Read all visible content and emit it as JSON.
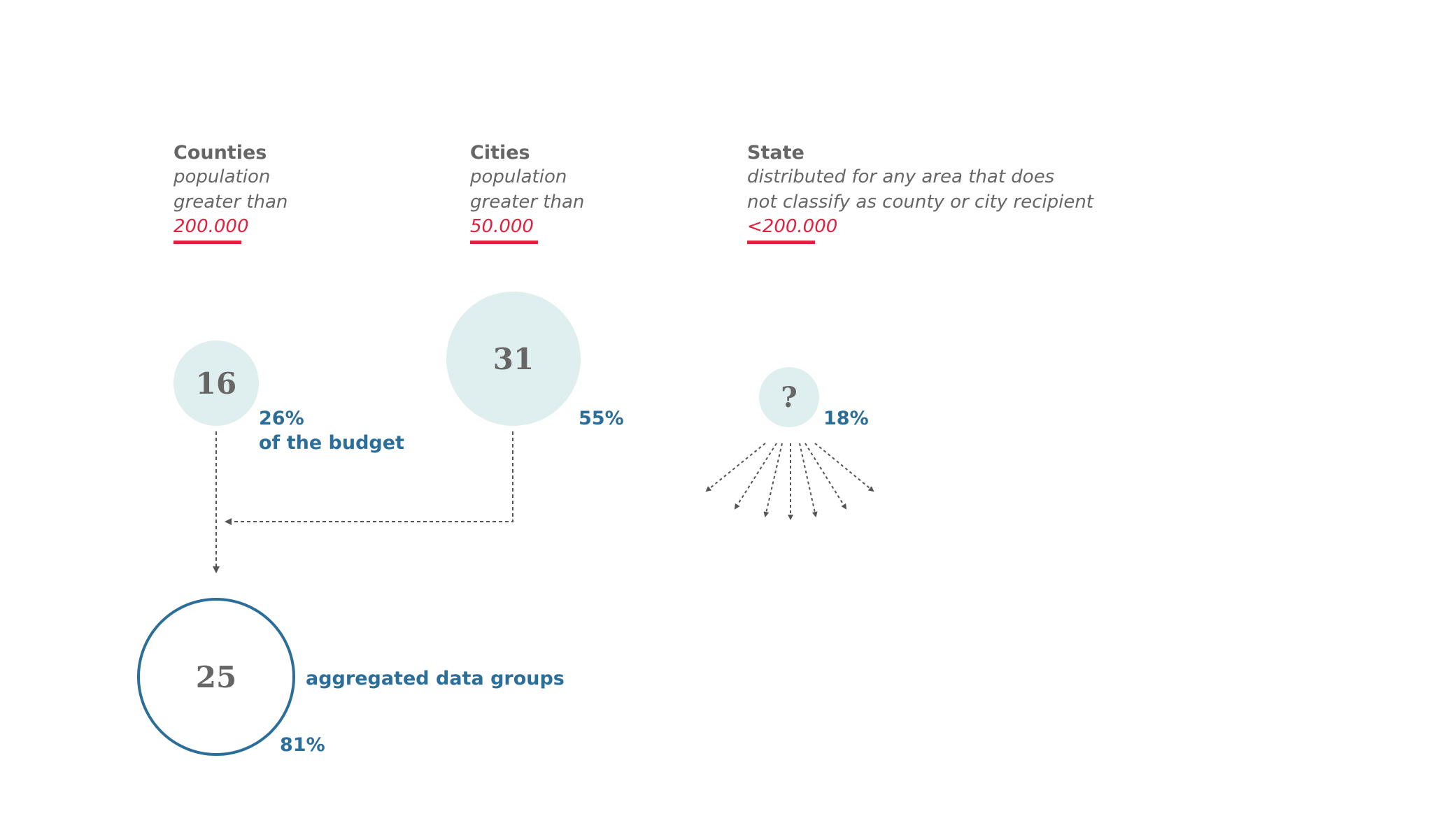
{
  "columns": {
    "counties": {
      "title": "Counties",
      "subtitle_line1": "population",
      "subtitle_line2": "greater than",
      "threshold": "200.000"
    },
    "cities": {
      "title": "Cities",
      "subtitle_line1": "population",
      "subtitle_line2": "greater than",
      "threshold": "50.000"
    },
    "state": {
      "title": "State",
      "subtitle_line1": "distributed for any area that does",
      "subtitle_line2": "not classify as county or city recipient",
      "threshold": "<200.000"
    }
  },
  "nodes": {
    "counties": {
      "value": "16",
      "percent": "26%",
      "percent_note": "of the budget"
    },
    "cities": {
      "value": "31",
      "percent": "55%"
    },
    "state": {
      "value": "?",
      "percent": "18%"
    },
    "aggregate": {
      "value": "25",
      "label": "aggregated data groups",
      "percent": "81%"
    }
  },
  "colors": {
    "accent_red": "#e3203d",
    "accent_blue": "#2b6e99",
    "bubble_fill": "#dfeeee",
    "text_gray": "#666666",
    "connector_gray": "#555555"
  }
}
